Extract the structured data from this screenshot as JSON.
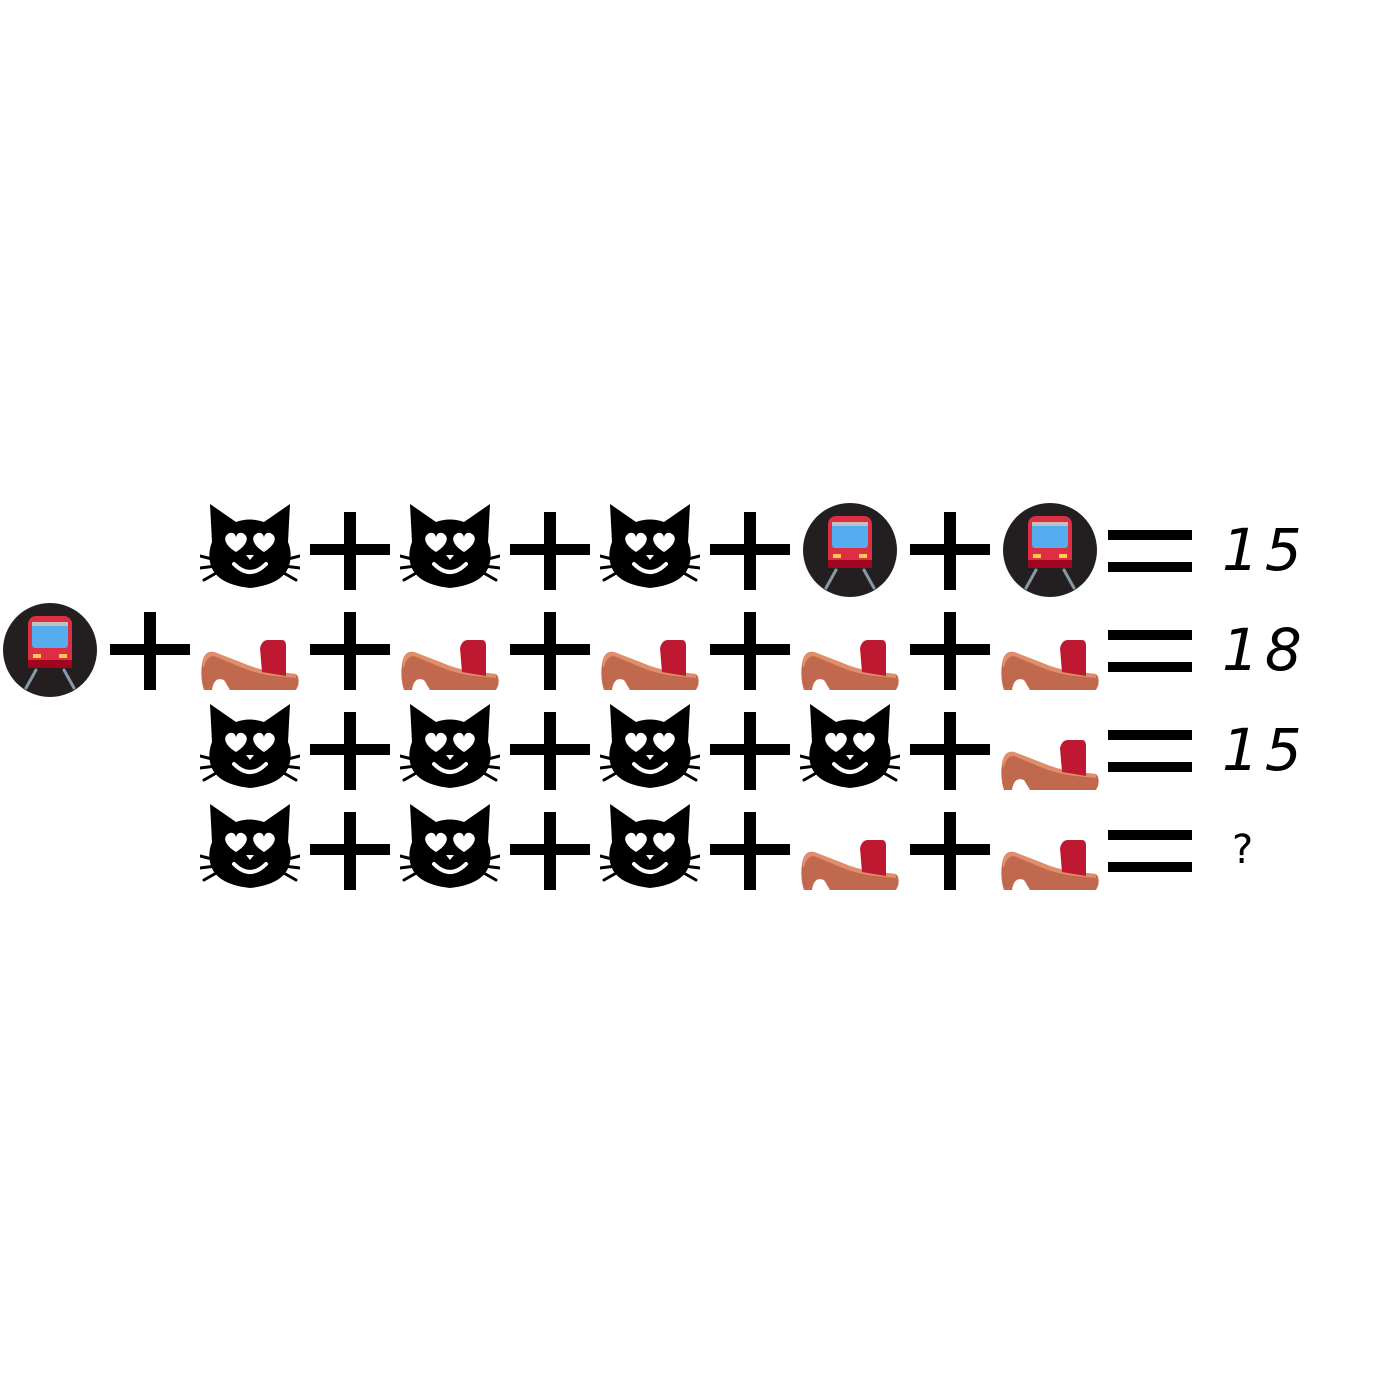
{
  "puzzle": {
    "equations": [
      {
        "terms": [
          "heart-eyes-cat-icon",
          "heart-eyes-cat-icon",
          "heart-eyes-cat-icon",
          "metro-train-icon",
          "metro-train-icon"
        ],
        "operator": "+",
        "equals": "=",
        "result": "15"
      },
      {
        "terms": [
          "metro-train-icon",
          "sandal-icon",
          "sandal-icon",
          "sandal-icon",
          "sandal-icon",
          "sandal-icon"
        ],
        "operator": "+",
        "equals": "=",
        "result": "18"
      },
      {
        "terms": [
          "heart-eyes-cat-icon",
          "heart-eyes-cat-icon",
          "heart-eyes-cat-icon",
          "heart-eyes-cat-icon",
          "sandal-icon"
        ],
        "operator": "+",
        "equals": "=",
        "result": "15"
      },
      {
        "terms": [
          "heart-eyes-cat-icon",
          "heart-eyes-cat-icon",
          "heart-eyes-cat-icon",
          "sandal-icon",
          "sandal-icon"
        ],
        "operator": "+",
        "equals": "=",
        "result": "?"
      }
    ]
  },
  "colors": {
    "cat": "#000000",
    "train_bg": "#231f20",
    "train_body": "#dd2e44",
    "train_window": "#55acee",
    "sandal_base": "#c1694f",
    "sandal_strap": "#be1931"
  }
}
